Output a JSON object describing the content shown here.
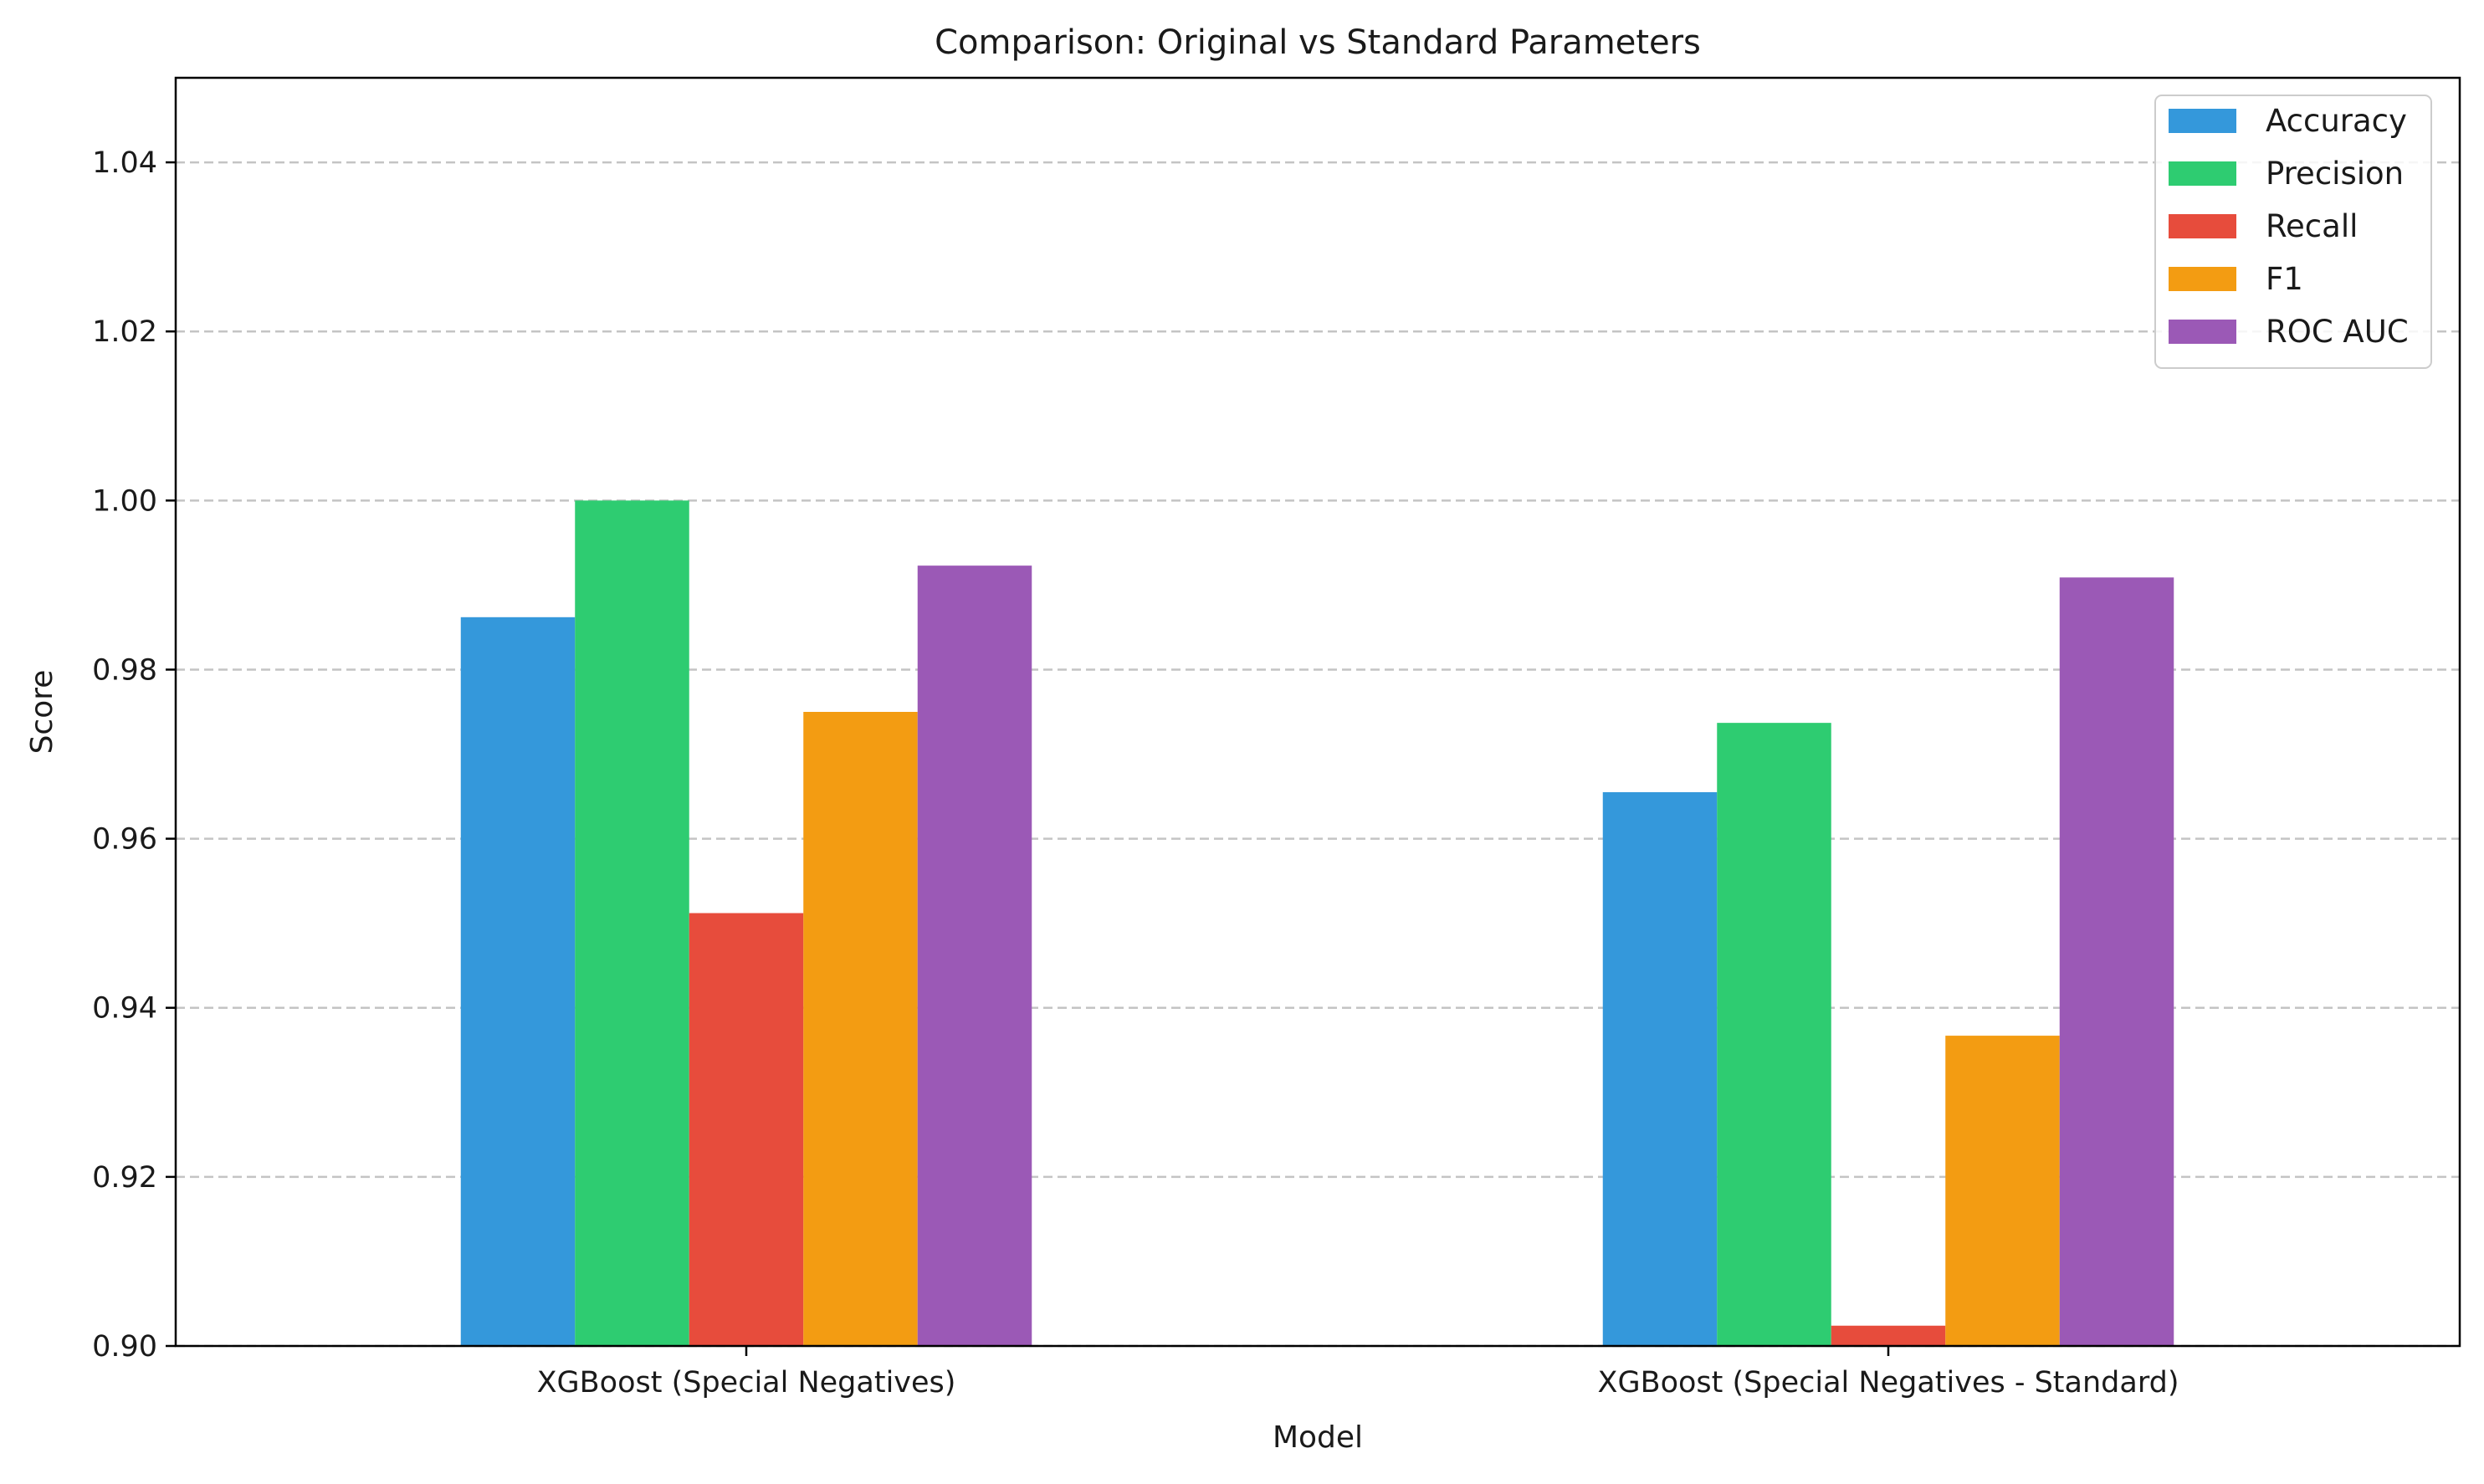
{
  "chart_data": {
    "type": "bar",
    "title": "Comparison: Original vs Standard Parameters",
    "xlabel": "Model",
    "ylabel": "Score",
    "categories": [
      "XGBoost (Special Negatives)",
      "XGBoost (Special Negatives - Standard)"
    ],
    "series": [
      {
        "name": "Accuracy",
        "color": "#3498db",
        "values": [
          0.9862,
          0.9655
        ]
      },
      {
        "name": "Precision",
        "color": "#2ecc71",
        "values": [
          1.0,
          0.9737
        ]
      },
      {
        "name": "Recall",
        "color": "#e74c3c",
        "values": [
          0.9512,
          0.9024
        ]
      },
      {
        "name": "F1",
        "color": "#f39c12",
        "values": [
          0.975,
          0.9367
        ]
      },
      {
        "name": "ROC AUC",
        "color": "#9b59b6",
        "values": [
          0.9923,
          0.9909
        ]
      }
    ],
    "ylim": [
      0.9,
      1.05
    ],
    "yticks": [
      "0.90",
      "0.92",
      "0.94",
      "0.96",
      "0.98",
      "1.00",
      "1.02",
      "1.04"
    ],
    "grid": "y-dashed",
    "legend_position": "top-right"
  }
}
